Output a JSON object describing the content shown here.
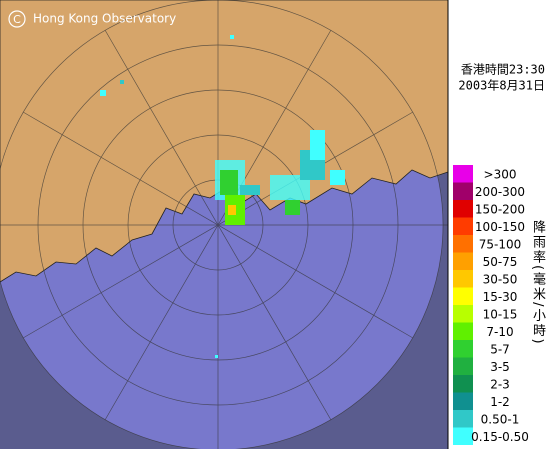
{
  "header": {
    "copyright_mark": "C",
    "agency": "Hong Kong Observatory"
  },
  "timestamp": {
    "time": "香港時間23:30",
    "date": "2003年8月31日"
  },
  "legend": {
    "title": "降雨率(毫米/小時)",
    "items": [
      {
        "label": ">300",
        "color": "#e800e8"
      },
      {
        "label": "200-300",
        "color": "#a0006a"
      },
      {
        "label": "150-200",
        "color": "#e00000"
      },
      {
        "label": "100-150",
        "color": "#ff3c00"
      },
      {
        "label": "75-100",
        "color": "#ff7000"
      },
      {
        "label": "50-75",
        "color": "#ffa000"
      },
      {
        "label": "30-50",
        "color": "#ffc800"
      },
      {
        "label": "15-30",
        "color": "#ffff00"
      },
      {
        "label": "10-15",
        "color": "#b8ff00"
      },
      {
        "label": "7-10",
        "color": "#60f000"
      },
      {
        "label": "5-7",
        "color": "#30d030"
      },
      {
        "label": "3-5",
        "color": "#20b040"
      },
      {
        "label": "2-3",
        "color": "#109050"
      },
      {
        "label": "1-2",
        "color": "#109090"
      },
      {
        "label": "0.50-1",
        "color": "#30c8c8"
      },
      {
        "label": "0.15-0.50",
        "color": "#40ffff"
      }
    ]
  }
}
